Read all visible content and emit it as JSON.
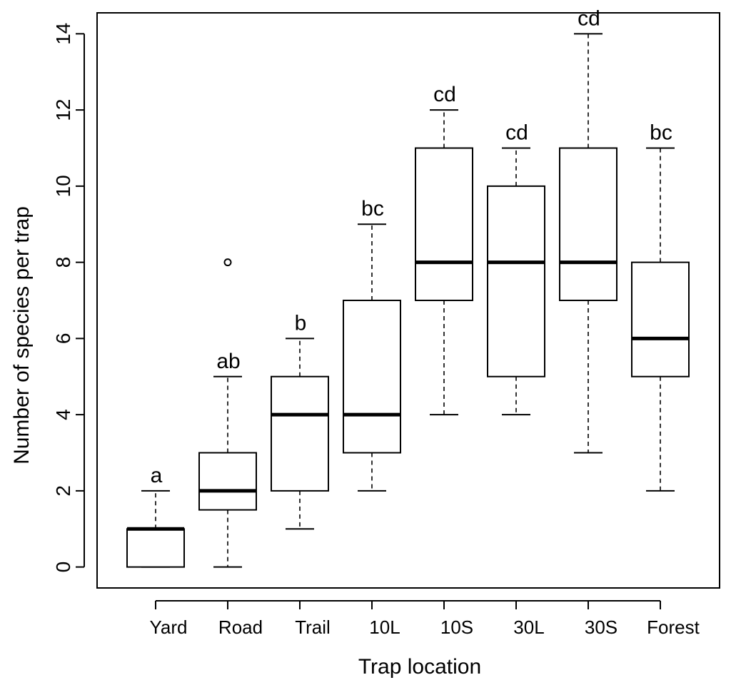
{
  "chart_data": {
    "type": "boxplot",
    "title": "",
    "xlabel": "Trap location",
    "ylabel": "Number of species  per trap",
    "ylim": [
      -0.55,
      14.55
    ],
    "yticks": [
      0,
      2,
      4,
      6,
      8,
      10,
      12,
      14
    ],
    "categories": [
      "Yard",
      "Road",
      "Trail",
      "10L",
      "10S",
      "30L",
      "30S",
      "Forest"
    ],
    "boxes": [
      {
        "category": "Yard",
        "min": 0,
        "q1": 0,
        "median": 1,
        "q3": 1,
        "max": 2,
        "outliers": [],
        "letter": "a"
      },
      {
        "category": "Road",
        "min": 0,
        "q1": 1.5,
        "median": 2,
        "q3": 3,
        "max": 5,
        "outliers": [
          8
        ],
        "letter": "ab"
      },
      {
        "category": "Trail",
        "min": 1,
        "q1": 2,
        "median": 4,
        "q3": 5,
        "max": 6,
        "outliers": [],
        "letter": "b"
      },
      {
        "category": "10L",
        "min": 2,
        "q1": 3,
        "median": 4,
        "q3": 7,
        "max": 9,
        "outliers": [],
        "letter": "bc"
      },
      {
        "category": "10S",
        "min": 4,
        "q1": 7,
        "median": 8,
        "q3": 11,
        "max": 12,
        "outliers": [],
        "letter": "cd"
      },
      {
        "category": "30L",
        "min": 4,
        "q1": 5,
        "median": 8,
        "q3": 10,
        "max": 11,
        "outliers": [],
        "letter": "cd"
      },
      {
        "category": "30S",
        "min": 3,
        "q1": 7,
        "median": 8,
        "q3": 11,
        "max": 14,
        "outliers": [],
        "letter": "cd"
      },
      {
        "category": "Forest",
        "min": 2,
        "q1": 5,
        "median": 6,
        "q3": 8,
        "max": 11,
        "outliers": [],
        "letter": "bc"
      }
    ]
  }
}
